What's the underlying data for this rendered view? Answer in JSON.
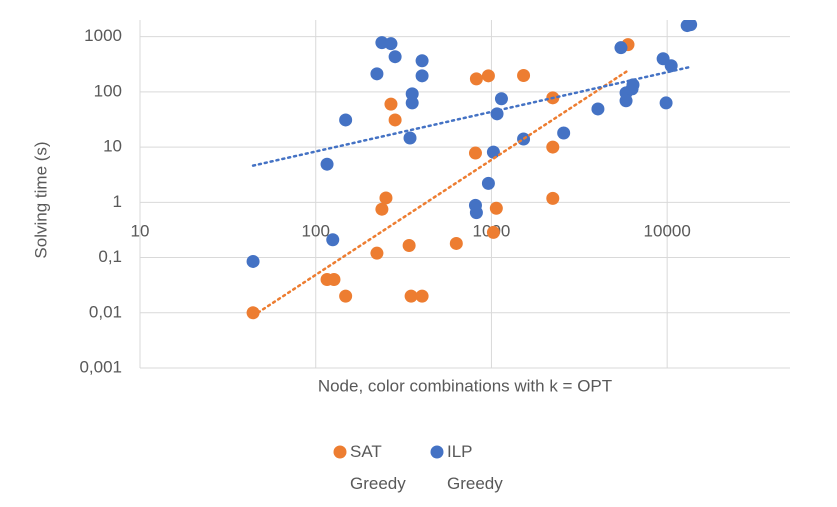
{
  "chart_data": {
    "type": "scatter",
    "x_label": "Node, color combinations with k = OPT",
    "y_label": "Solving time (s)",
    "xscale": "log",
    "yscale": "log",
    "grid": true,
    "trendline": true,
    "legend": "bottom",
    "xlim": [
      10,
      50000
    ],
    "xticks": [
      10,
      100,
      1000,
      10000
    ],
    "ylim": [
      0.001,
      2000
    ],
    "yticks": [
      {
        "value": 0.001,
        "label": "0,001"
      },
      {
        "value": 0.01,
        "label": "0,01"
      },
      {
        "value": 0.1,
        "label": "0,1"
      },
      1,
      10,
      100,
      1000
    ],
    "series": [
      {
        "name": "SAT Greedy",
        "color": "#ed7d31",
        "x": [
          44,
          116,
          127,
          148,
          223,
          238,
          251,
          268,
          283,
          340,
          349,
          403,
          631,
          811,
          821,
          961,
          1026,
          1066,
          1523,
          2234,
          2234,
          2234,
          5984
        ],
        "values": [
          0.01,
          0.04,
          0.04,
          0.02,
          0.12,
          0.75,
          1.2,
          60,
          31,
          0.165,
          0.02,
          0.02,
          0.18,
          7.8,
          172,
          195,
          0.285,
          0.78,
          198,
          78,
          10,
          1.18,
          716
        ]
      },
      {
        "name": "ILP Greedy",
        "color": "#4472c4",
        "x": [
          44,
          116,
          125,
          148,
          223,
          238,
          268,
          283,
          344,
          354,
          354,
          403,
          403,
          811,
          821,
          961,
          1026,
          1076,
          1140,
          1523,
          2576,
          4036,
          5458,
          5834,
          5834,
          6310,
          6390,
          9484,
          9860,
          10540,
          13000,
          13600
        ],
        "values": [
          0.085,
          4.9,
          0.21,
          31,
          212,
          778,
          745,
          433,
          14.6,
          92,
          63,
          366,
          195,
          0.88,
          0.65,
          2.2,
          8.1,
          40,
          75,
          14,
          18,
          49,
          631,
          96,
          69,
          113,
          134,
          398,
          63,
          297,
          1585,
          1650
        ]
      }
    ]
  }
}
